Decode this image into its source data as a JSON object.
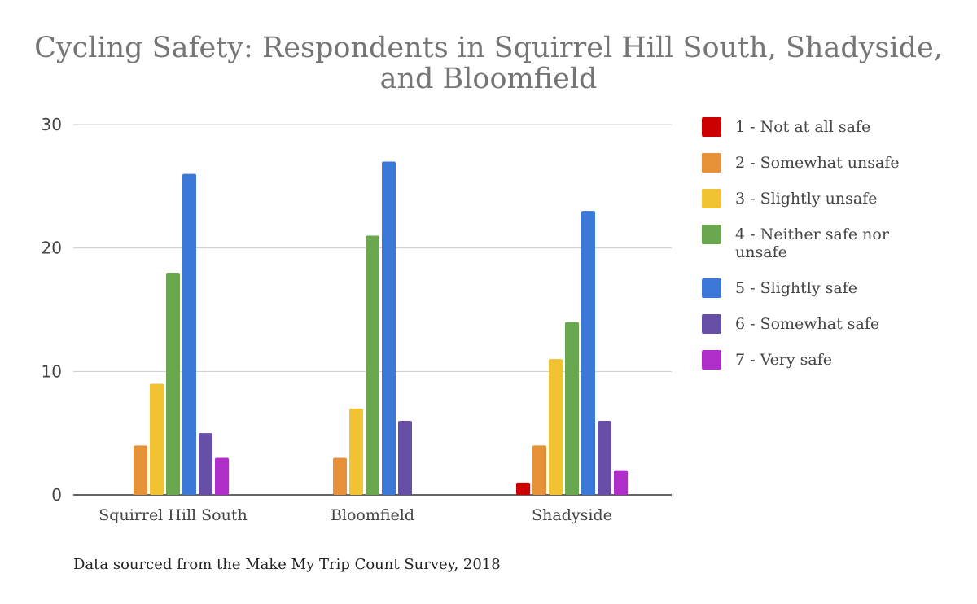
{
  "chart_data": {
    "type": "bar",
    "title_lines": [
      "Cycling Safety: Respondents in Squirrel Hill South, Shadyside,",
      "and Bloomfield"
    ],
    "xlabel": "",
    "ylabel": "",
    "categories": [
      "Squirrel Hill South",
      "Bloomfield",
      "Shadyside"
    ],
    "ylim": [
      0,
      30
    ],
    "yticks": [
      "0",
      "10",
      "20",
      "30"
    ],
    "grid": true,
    "legend_position": "right",
    "series": [
      {
        "name": "1 - Not at all safe",
        "color": "#cc0000",
        "values": [
          0,
          0,
          1
        ]
      },
      {
        "name": "2 - Somewhat unsafe",
        "color": "#e69138",
        "values": [
          4,
          3,
          4
        ]
      },
      {
        "name": "3 - Slightly unsafe",
        "color": "#f1c232",
        "values": [
          9,
          7,
          11
        ]
      },
      {
        "name": "4 - Neither safe nor unsafe",
        "color": "#6aa84f",
        "values": [
          18,
          21,
          14
        ]
      },
      {
        "name": "5 - Slightly safe",
        "color": "#3c78d8",
        "values": [
          26,
          27,
          23
        ]
      },
      {
        "name": "6 - Somewhat safe",
        "color": "#674ea7",
        "values": [
          5,
          6,
          6
        ]
      },
      {
        "name": "7 - Very safe",
        "color": "#b02ec9",
        "values": [
          3,
          0,
          2
        ]
      }
    ]
  },
  "source_note": "Data sourced from the Make My Trip Count Survey, 2018"
}
